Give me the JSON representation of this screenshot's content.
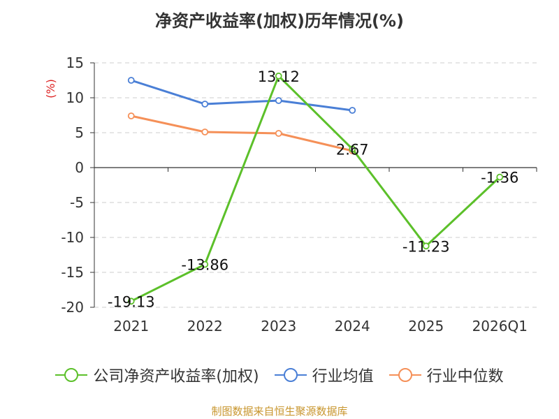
{
  "title": "净资产收益率(加权)历年情况(%)",
  "source": "制图数据来自恒生聚源数据库",
  "chart_data": {
    "type": "line",
    "title": "净资产收益率(加权)历年情况(%)",
    "ylabel": "(%)",
    "xlabel": "",
    "categories": [
      "2021",
      "2022",
      "2023",
      "2024",
      "2025",
      "2026Q1"
    ],
    "ylim": [
      -20,
      15
    ],
    "yticks": [
      "15",
      "10",
      "5",
      "0",
      "-5",
      "-10",
      "-15",
      "-20"
    ],
    "grid": true,
    "legend_position": "bottom",
    "series": [
      {
        "name": "公司净资产收益率(加权)",
        "color": "#5cc02a",
        "values": [
          -19.13,
          -13.86,
          13.12,
          2.67,
          -11.23,
          -1.36
        ],
        "labels": [
          "-19.13",
          "-13.86",
          "13.12",
          "2.67",
          "-11.23",
          "-1.36"
        ]
      },
      {
        "name": "行业均值",
        "color": "#4a7fd6",
        "values": [
          12.5,
          9.1,
          9.6,
          8.2,
          null,
          null
        ]
      },
      {
        "name": "行业中位数",
        "color": "#f59058",
        "values": [
          7.4,
          5.1,
          4.9,
          2.4,
          null,
          null
        ]
      }
    ]
  }
}
